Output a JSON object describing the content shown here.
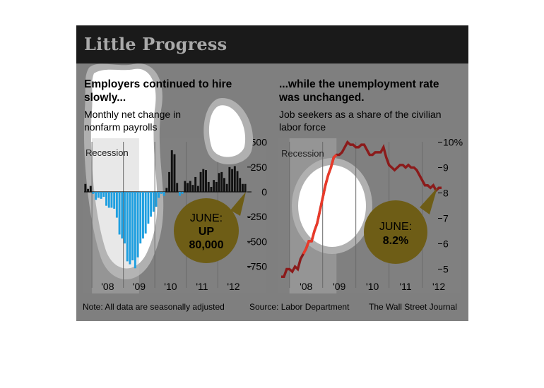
{
  "title": "Little Progress",
  "left": {
    "heading": [
      "Employers continued to hire",
      "slowly..."
    ],
    "subtitle": [
      "Monthly net change in",
      "nonfarm payrolls"
    ],
    "recession_label": "Recession",
    "callout": [
      "JUNE:",
      "UP",
      "80,000"
    ]
  },
  "right": {
    "heading": [
      "...while the unemployment rate",
      "was unchanged."
    ],
    "subtitle": [
      "Job seekers as a share of the civilian",
      "labor force"
    ],
    "recession_label": "Recession",
    "callout": [
      "JUNE:",
      "8.2%"
    ]
  },
  "footer": {
    "note": "Note: All data are seasonally adjusted",
    "source": "Source: Labor Department",
    "credit": "The Wall Street Journal"
  },
  "colors": {
    "negative_bar": "#1e9fe0",
    "positive_bar": "#111111",
    "unemployment_line_highlight": "#e83a2a",
    "unemployment_line": "#8b1b1b",
    "callout_fill": "#6e5d16",
    "recession_shade": "#bdbdbd"
  },
  "chart_data": [
    {
      "type": "bar",
      "title": "Employers continued to hire slowly...",
      "subtitle": "Monthly net change in nonfarm payrolls",
      "x_tick_labels": [
        "'08",
        "'09",
        "'10",
        "'11",
        "'12"
      ],
      "y_tick_labels": [
        "500",
        "250",
        "0",
        "-250",
        "-500",
        "-750"
      ],
      "ylim": [
        -800,
        500
      ],
      "recession": [
        "2008-01",
        "2009-06"
      ],
      "grid": "vertical",
      "annotation": "JUNE: UP 80,000",
      "series": [
        {
          "start": "2007-10",
          "frequency": "monthly",
          "values": [
            80,
            30,
            60,
            -20,
            -80,
            -60,
            -70,
            -50,
            -140,
            -160,
            -160,
            -170,
            -260,
            -430,
            -470,
            -520,
            -700,
            -730,
            -690,
            -770,
            -660,
            -520,
            -470,
            -420,
            -320,
            -250,
            -200,
            -150,
            -60,
            -20,
            -40,
            40,
            200,
            420,
            380,
            90,
            -40,
            -20,
            110,
            90,
            110,
            70,
            150,
            60,
            200,
            230,
            220,
            100,
            50,
            120,
            100,
            190,
            200,
            140,
            80,
            250,
            230,
            260,
            210,
            140,
            80,
            80
          ]
        }
      ]
    },
    {
      "type": "line",
      "title": "...while the unemployment rate was unchanged.",
      "subtitle": "Job seekers as a share of the civilian labor force",
      "x_tick_labels": [
        "'08",
        "'09",
        "'10",
        "'11",
        "'12"
      ],
      "y_tick_labels": [
        "10%",
        "9",
        "8",
        "7",
        "6",
        "5"
      ],
      "ylim": [
        4.6,
        10
      ],
      "recession": [
        "2008-01",
        "2009-06"
      ],
      "grid": "vertical",
      "annotation": "JUNE: 8.2%",
      "series": [
        {
          "start": "2007-10",
          "frequency": "monthly",
          "values": [
            4.7,
            4.7,
            5.0,
            5.0,
            4.9,
            5.1,
            5.0,
            5.4,
            5.6,
            5.8,
            6.1,
            6.1,
            6.5,
            6.8,
            7.3,
            7.8,
            8.3,
            8.7,
            9.0,
            9.4,
            9.5,
            9.5,
            9.6,
            9.8,
            10.0,
            9.9,
            9.9,
            9.8,
            9.8,
            9.9,
            9.9,
            9.7,
            9.5,
            9.5,
            9.6,
            9.6,
            9.6,
            9.8,
            9.4,
            9.1,
            9.0,
            8.9,
            9.0,
            9.1,
            9.1,
            9.0,
            9.1,
            9.0,
            9.0,
            8.9,
            8.7,
            8.5,
            8.3,
            8.3,
            8.2,
            8.3,
            8.1,
            8.2,
            8.2
          ]
        }
      ]
    }
  ]
}
